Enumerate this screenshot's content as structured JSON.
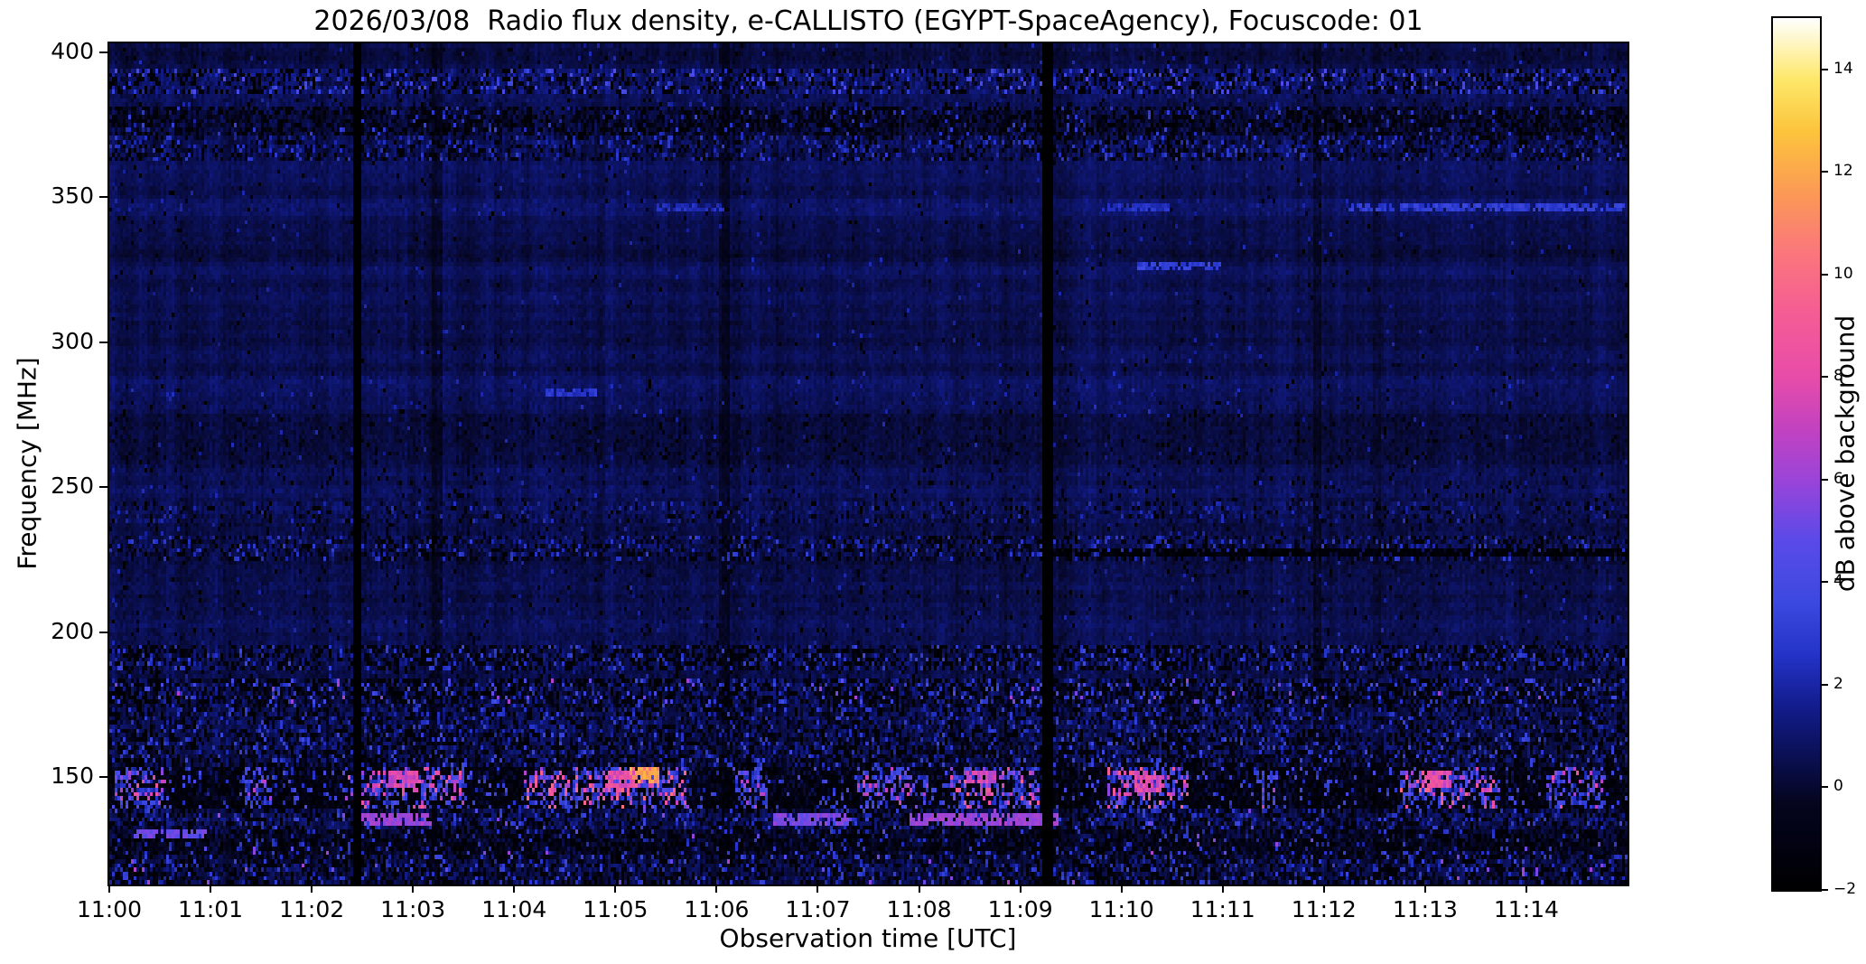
{
  "chart_data": {
    "type": "heatmap",
    "title": "2026/03/08  Radio flux density, e-CALLISTO (EGYPT-SpaceAgency), Focuscode: 01",
    "xlabel": "Observation time [UTC]",
    "ylabel": "Frequency [MHz]",
    "colorbar_label": "dB above background",
    "x_tick_labels": [
      "11:00",
      "11:01",
      "11:02",
      "11:03",
      "11:04",
      "11:05",
      "11:06",
      "11:07",
      "11:08",
      "11:09",
      "11:10",
      "11:11",
      "11:12",
      "11:13",
      "11:14"
    ],
    "x_range_minutes": [
      0,
      15
    ],
    "y_tick_values_mhz": [
      400,
      350,
      300,
      250,
      200,
      150
    ],
    "y_range_mhz": [
      113,
      403
    ],
    "value_range_db": [
      -2,
      15
    ],
    "colorbar_tick_values_db": [
      14,
      12,
      10,
      8,
      6,
      4,
      2,
      0,
      -2
    ],
    "colormap_stops": [
      [
        0.0,
        "#000000"
      ],
      [
        0.06,
        "#020214"
      ],
      [
        0.1,
        "#05051e"
      ],
      [
        0.15,
        "#0a0f50"
      ],
      [
        0.21,
        "#121c8c"
      ],
      [
        0.27,
        "#2433c8"
      ],
      [
        0.33,
        "#3c49e0"
      ],
      [
        0.4,
        "#5a4ae8"
      ],
      [
        0.47,
        "#9a44d8"
      ],
      [
        0.53,
        "#c342c0"
      ],
      [
        0.59,
        "#e84da8"
      ],
      [
        0.66,
        "#f45c95"
      ],
      [
        0.73,
        "#fa767c"
      ],
      [
        0.8,
        "#fb9a55"
      ],
      [
        0.87,
        "#fcc43c"
      ],
      [
        0.93,
        "#fde86a"
      ],
      [
        1.0,
        "#ffffff"
      ]
    ],
    "annotations": {
      "background_level_db": 0.5,
      "vertical_gaps_minutes": [
        [
          2.4,
          2.46
        ],
        [
          9.21,
          9.29
        ]
      ],
      "faint_dark_columns_minutes": [
        3.25,
        6.08,
        11.93
      ],
      "interference_bands": [
        {
          "f_lo": 395,
          "f_hi": 403.5,
          "base": 0.45,
          "amp": 0.45,
          "dark": 0.02,
          "spike": 0.01,
          "spike_lo": 1.5,
          "spike_hi": 2.4
        },
        {
          "f_lo": 386,
          "f_hi": 395,
          "base": 0.85,
          "amp": 1.1,
          "dark": 0.24,
          "spike": 0.12,
          "spike_lo": 2.4,
          "spike_hi": 4.6
        },
        {
          "f_lo": 381,
          "f_hi": 386,
          "base": 0.4,
          "amp": 0.55,
          "dark": 0.04,
          "spike": 0.02,
          "spike_lo": 1.4,
          "spike_hi": 2.2
        },
        {
          "f_lo": 371,
          "f_hi": 381,
          "base": 0.25,
          "amp": 1.0,
          "dark": 0.3,
          "spike": 0.07,
          "spike_lo": 1.8,
          "spike_hi": 3.4
        },
        {
          "f_lo": 363,
          "f_hi": 371,
          "base": 0.5,
          "amp": 0.95,
          "dark": 0.18,
          "spike": 0.13,
          "spike_lo": 1.7,
          "spike_hi": 3.1
        },
        {
          "f_lo": 350,
          "f_hi": 363,
          "base": 0.5,
          "amp": 0.42,
          "dark": 0.012,
          "spike": 0.006,
          "spike_lo": 1.4,
          "spike_hi": 2.2
        },
        {
          "f_lo": 344,
          "f_hi": 350,
          "base": 0.65,
          "amp": 0.5,
          "dark": 0.015,
          "spike": 0.02,
          "spike_lo": 1.4,
          "spike_hi": 2.2
        },
        {
          "f_lo": 290,
          "f_hi": 344,
          "base": 0.5,
          "amp": 0.42,
          "dark": 0.01,
          "spike": 0.005,
          "spike_lo": 1.4,
          "spike_hi": 2.3
        },
        {
          "f_lo": 275,
          "f_hi": 290,
          "base": 0.55,
          "amp": 0.48,
          "dark": 0.012,
          "spike": 0.012,
          "spike_lo": 1.4,
          "spike_hi": 2.6
        },
        {
          "f_lo": 245,
          "f_hi": 275,
          "base": 0.42,
          "amp": 0.5,
          "dark": 0.04,
          "spike": 0.008,
          "spike_lo": 1.4,
          "spike_hi": 2.4
        },
        {
          "f_lo": 238,
          "f_hi": 245,
          "base": 0.6,
          "amp": 0.75,
          "dark": 0.09,
          "spike": 0.05,
          "spike_lo": 1.5,
          "spike_hi": 2.6
        },
        {
          "f_lo": 233,
          "f_hi": 238,
          "base": 0.45,
          "amp": 0.5,
          "dark": 0.03,
          "spike": 0.01,
          "spike_lo": 1.4,
          "spike_hi": 2.2
        },
        {
          "f_lo": 224,
          "f_hi": 233,
          "base": 0.6,
          "amp": 1.0,
          "dark": 0.2,
          "spike": 0.1,
          "spike_lo": 1.9,
          "spike_hi": 3.2
        },
        {
          "f_lo": 196,
          "f_hi": 224,
          "base": 0.45,
          "amp": 0.5,
          "dark": 0.025,
          "spike": 0.007,
          "spike_lo": 1.4,
          "spike_hi": 2.3
        },
        {
          "f_lo": 187,
          "f_hi": 196,
          "base": 0.5,
          "amp": 1.1,
          "dark": 0.34,
          "spike": 0.13,
          "spike_lo": 1.9,
          "spike_hi": 3.6
        },
        {
          "f_lo": 184,
          "f_hi": 187,
          "base": 0.4,
          "amp": 0.6,
          "dark": 0.06,
          "spike": 0.02,
          "spike_lo": 1.4,
          "spike_hi": 2.2
        },
        {
          "f_lo": 175,
          "f_hi": 184,
          "base": 0.6,
          "amp": 1.35,
          "dark": 0.38,
          "spike": 0.15,
          "spike_lo": 2.1,
          "spike_hi": 4.2,
          "pink_p": 0.012,
          "pink_lo": 4.8,
          "pink_hi": 6.6
        },
        {
          "f_lo": 165,
          "f_hi": 175,
          "base": 0.5,
          "amp": 1.1,
          "dark": 0.22,
          "spike": 0.11,
          "spike_lo": 1.8,
          "spike_hi": 3.2
        },
        {
          "f_lo": 154,
          "f_hi": 165,
          "base": 0.42,
          "amp": 1.25,
          "dark": 0.3,
          "spike": 0.12,
          "spike_lo": 1.9,
          "spike_hi": 3.7
        },
        {
          "f_lo": 139,
          "f_hi": 154,
          "base": -0.5,
          "amp": 1.3,
          "dark": 0.42,
          "spike": 0.16,
          "spike_lo": 1.9,
          "spike_hi": 4.3,
          "burst": true
        },
        {
          "f_lo": 132,
          "f_hi": 139,
          "base": 0.5,
          "amp": 1.2,
          "dark": 0.26,
          "spike": 0.12,
          "spike_lo": 1.9,
          "spike_hi": 3.5,
          "pink_p": 0.01,
          "pink_lo": 4.4,
          "pink_hi": 6.2
        },
        {
          "f_lo": 125,
          "f_hi": 132,
          "base": 0.05,
          "amp": 1.1,
          "dark": 0.36,
          "spike": 0.1,
          "spike_lo": 1.8,
          "spike_hi": 3.1,
          "pink_p": 0.006,
          "pink_lo": 4.4,
          "pink_hi": 6.0
        },
        {
          "f_lo": 112,
          "f_hi": 125,
          "base": 0.25,
          "amp": 1.2,
          "dark": 0.3,
          "spike": 0.14,
          "spike_lo": 1.9,
          "spike_hi": 3.5,
          "pink_p": 0.008,
          "pink_lo": 4.4,
          "pink_hi": 6.6
        }
      ],
      "line_segments": [
        {
          "f_mhz": 346,
          "t0": 12.25,
          "t1": 14.95,
          "level_db": 3.0
        },
        {
          "f_mhz": 346,
          "t0": 5.4,
          "t1": 6.05,
          "level_db": 2.3
        },
        {
          "f_mhz": 346,
          "t0": 9.8,
          "t1": 10.45,
          "level_db": 2.5
        },
        {
          "f_mhz": 326,
          "t0": 10.15,
          "t1": 10.95,
          "level_db": 3.2
        },
        {
          "f_mhz": 283,
          "t0": 4.3,
          "t1": 4.8,
          "level_db": 2.7
        },
        {
          "f_mhz": 227.5,
          "t0": 9.3,
          "t1": 14.98,
          "level_db": -1.6
        },
        {
          "f_mhz": 135.5,
          "t0": 2.45,
          "t1": 3.15,
          "level_db": 6.0
        },
        {
          "f_mhz": 135.5,
          "t0": 6.55,
          "t1": 7.3,
          "level_db": 5.4
        },
        {
          "f_mhz": 135.5,
          "t0": 7.9,
          "t1": 9.35,
          "level_db": 6.1
        },
        {
          "f_mhz": 130,
          "t0": 0.25,
          "t1": 0.95,
          "level_db": 5.0
        }
      ],
      "burst_windows": [
        {
          "t0": 0.05,
          "t1": 0.55,
          "s": 0.7
        },
        {
          "t0": 1.35,
          "t1": 1.6,
          "s": 0.5
        },
        {
          "t0": 2.3,
          "t1": 3.5,
          "s": 0.8
        },
        {
          "t0": 4.1,
          "t1": 5.75,
          "s": 1.0
        },
        {
          "t0": 6.2,
          "t1": 6.5,
          "s": 0.6
        },
        {
          "t0": 7.4,
          "t1": 8.1,
          "s": 0.55
        },
        {
          "t0": 8.3,
          "t1": 9.2,
          "s": 0.85
        },
        {
          "t0": 9.85,
          "t1": 10.65,
          "s": 0.9
        },
        {
          "t0": 11.3,
          "t1": 11.55,
          "s": 0.5
        },
        {
          "t0": 12.75,
          "t1": 13.75,
          "s": 0.9
        },
        {
          "t0": 14.2,
          "t1": 14.75,
          "s": 0.7
        }
      ],
      "hotspots": [
        {
          "t_min": 5.27,
          "f_mhz": 150.5,
          "level_db": 12.5
        },
        {
          "t_min": 5.05,
          "f_mhz": 149,
          "level_db": 9.5
        },
        {
          "t_min": 2.9,
          "f_mhz": 149,
          "level_db": 8.5
        },
        {
          "t_min": 8.6,
          "f_mhz": 150,
          "level_db": 8.5
        },
        {
          "t_min": 10.25,
          "f_mhz": 148,
          "level_db": 9.0
        },
        {
          "t_min": 13.1,
          "f_mhz": 149,
          "level_db": 9.0
        }
      ]
    }
  }
}
